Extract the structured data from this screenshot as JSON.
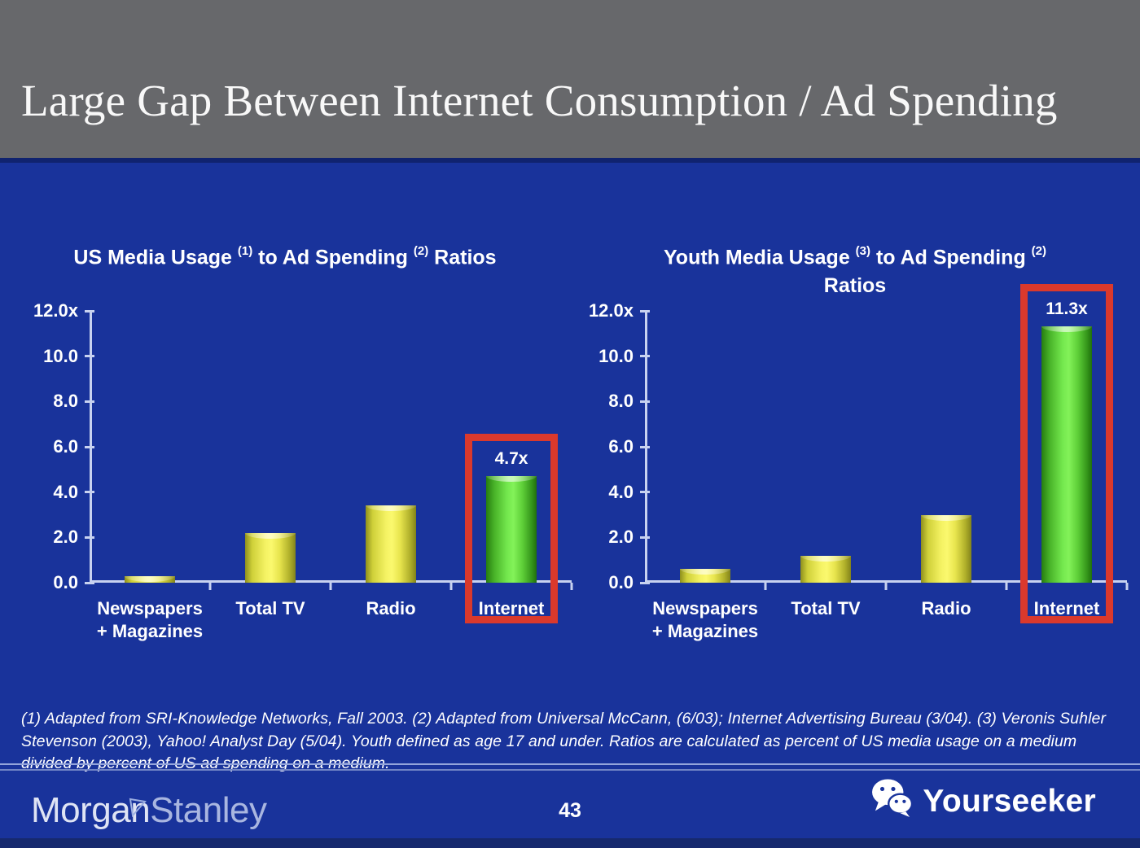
{
  "header": {
    "title": "Large Gap Between Internet Consumption / Ad Spending"
  },
  "chart_data": [
    {
      "type": "bar",
      "title": "US Media Usage ^(1) to Ad Spending ^(2) Ratios",
      "categories": [
        "Newspapers\n+ Magazines",
        "Total TV",
        "Radio",
        "Internet"
      ],
      "values": [
        0.3,
        2.2,
        3.4,
        4.7
      ],
      "bar_colors": [
        "yellow",
        "yellow",
        "yellow",
        "green"
      ],
      "data_labels": [
        "",
        "",
        "",
        "4.7x"
      ],
      "highlight_index": 3,
      "ylim": [
        0,
        12
      ],
      "ytick_labels": [
        "12.0x",
        "10.0",
        "8.0",
        "6.0",
        "4.0",
        "2.0",
        "0.0"
      ],
      "xlabel": "",
      "ylabel": "",
      "grid": false,
      "legend": false
    },
    {
      "type": "bar",
      "title": "Youth Media Usage ^(3) to Ad Spending ^(2)\nRatios",
      "categories": [
        "Newspapers\n+ Magazines",
        "Total TV",
        "Radio",
        "Internet"
      ],
      "values": [
        0.6,
        1.2,
        3.0,
        11.3
      ],
      "bar_colors": [
        "yellow",
        "yellow",
        "yellow",
        "green"
      ],
      "data_labels": [
        "",
        "",
        "",
        "11.3x"
      ],
      "highlight_index": 3,
      "ylim": [
        0,
        12
      ],
      "ytick_labels": [
        "12.0x",
        "10.0",
        "8.0",
        "6.0",
        "4.0",
        "2.0",
        "0.0"
      ],
      "xlabel": "",
      "ylabel": "",
      "grid": false,
      "legend": false
    }
  ],
  "footnote": {
    "text": "(1) Adapted from SRI-Knowledge Networks, Fall 2003.  (2) Adapted from Universal McCann, (6/03); Internet Advertising Bureau (3/04). (3) Veronis Suhler Stevenson (2003), Yahoo! Analyst Day (5/04).  Youth defined as age 17 and under.  Ratios are calculated as percent of US media usage on a medium divided by percent of US ad spending on a medium."
  },
  "footer": {
    "brand_part1": "Morgan",
    "brand_part2": "Stanley",
    "page_number": "43",
    "watermark": "Yourseeker"
  },
  "colors": {
    "slide_blue": "#19339b",
    "header_gray": "#67686b",
    "bar_yellow": "#f2ee5c",
    "bar_green": "#5fd93f",
    "highlight_red": "#da392c",
    "axis_line": "#c8d2f0",
    "title_white": "#f8f8f8",
    "brand_silver": "#c9d1ec"
  }
}
